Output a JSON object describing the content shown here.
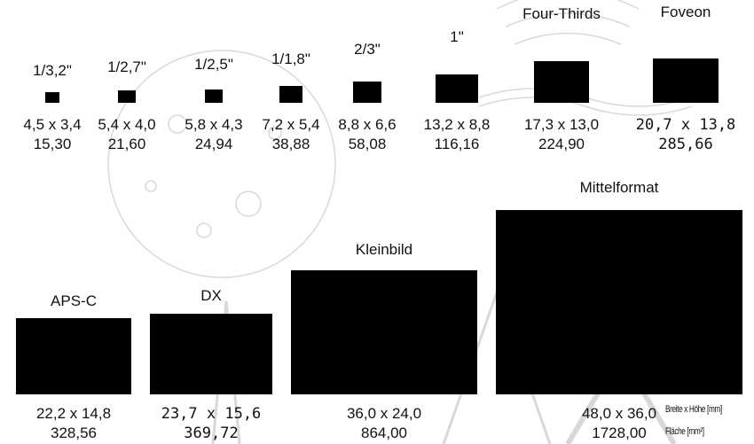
{
  "colors": {
    "sensor": "#000000",
    "watermark": "#d8d8d8",
    "text": "#111111"
  },
  "legend": {
    "dimension_label": "Breite x Höhe [mm]",
    "area_label": "Fläche [mm²]"
  },
  "sensors": [
    {
      "id": "1-3-2",
      "name": "1/3,2\"",
      "width_mm": 4.5,
      "height_mm": 3.4,
      "dims": "4,5 x 3,4",
      "area": "15,30"
    },
    {
      "id": "1-2-7",
      "name": "1/2,7\"",
      "width_mm": 5.4,
      "height_mm": 4.0,
      "dims": "5,4 x 4,0",
      "area": "21,60"
    },
    {
      "id": "1-2-5",
      "name": "1/2,5\"",
      "width_mm": 5.8,
      "height_mm": 4.3,
      "dims": "5,8 x 4,3",
      "area": "24,94"
    },
    {
      "id": "1-1-8",
      "name": "1/1,8\"",
      "width_mm": 7.2,
      "height_mm": 5.4,
      "dims": "7,2 x 5,4",
      "area": "38,88"
    },
    {
      "id": "2-3",
      "name": "2/3\"",
      "width_mm": 8.8,
      "height_mm": 6.6,
      "dims": "8,8 x 6,6",
      "area": "58,08"
    },
    {
      "id": "1-inch",
      "name": "1\"",
      "width_mm": 13.2,
      "height_mm": 8.8,
      "dims": "13,2 x 8,8",
      "area": "116,16"
    },
    {
      "id": "four-thirds",
      "name": "Four-Thirds",
      "width_mm": 17.3,
      "height_mm": 13.0,
      "dims": "17,3 x 13,0",
      "area": "224,90"
    },
    {
      "id": "foveon",
      "name": "Foveon",
      "width_mm": 20.7,
      "height_mm": 13.8,
      "dims": "20,7 x 13,8",
      "area": "285,66"
    },
    {
      "id": "aps-c",
      "name": "APS-C",
      "width_mm": 22.2,
      "height_mm": 14.8,
      "dims": "22,2 x 14,8",
      "area": "328,56"
    },
    {
      "id": "dx",
      "name": "DX",
      "width_mm": 23.7,
      "height_mm": 15.6,
      "dims": "23,7 x 15,6",
      "area": "369,72"
    },
    {
      "id": "kleinbild",
      "name": "Kleinbild",
      "width_mm": 36.0,
      "height_mm": 24.0,
      "dims": "36,0 x 24,0",
      "area": "864,00"
    },
    {
      "id": "mittelformat",
      "name": "Mittelformat",
      "width_mm": 48.0,
      "height_mm": 36.0,
      "dims": "48,0 x 36,0",
      "area": "1728,00"
    }
  ]
}
